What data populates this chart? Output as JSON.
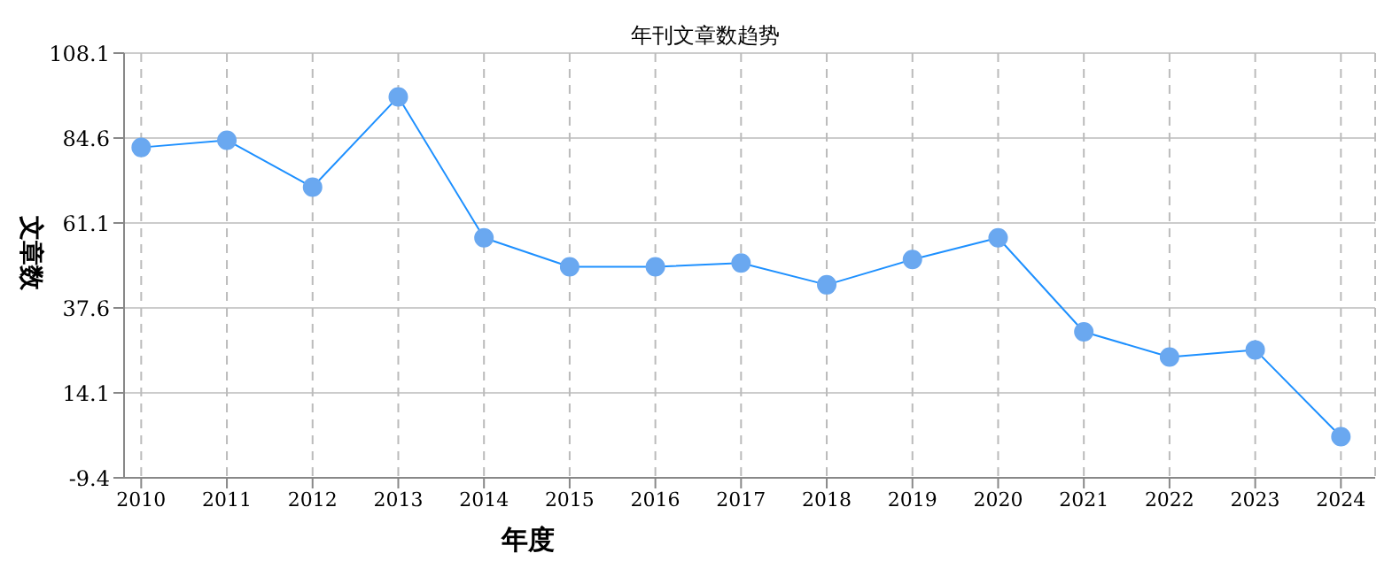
{
  "chart_data": {
    "type": "line",
    "title": "年刊文章数趋势",
    "xlabel": "年度",
    "ylabel": "文章数",
    "categories": [
      "2010",
      "2011",
      "2012",
      "2013",
      "2014",
      "2015",
      "2016",
      "2017",
      "2018",
      "2019",
      "2020",
      "2021",
      "2022",
      "2023",
      "2024"
    ],
    "series": [
      {
        "color": "#1e90ff",
        "values": [
          82,
          84,
          71,
          96,
          57,
          49,
          49,
          50,
          44,
          51,
          57,
          31,
          24,
          26,
          2
        ]
      }
    ],
    "ylim": [
      -9.4,
      108.1
    ],
    "yticks": [
      -9.4,
      14.1,
      37.6,
      61.1,
      84.6,
      108.1
    ],
    "grid": true,
    "marker": "circle",
    "line_style": "solid",
    "legend": false
  }
}
